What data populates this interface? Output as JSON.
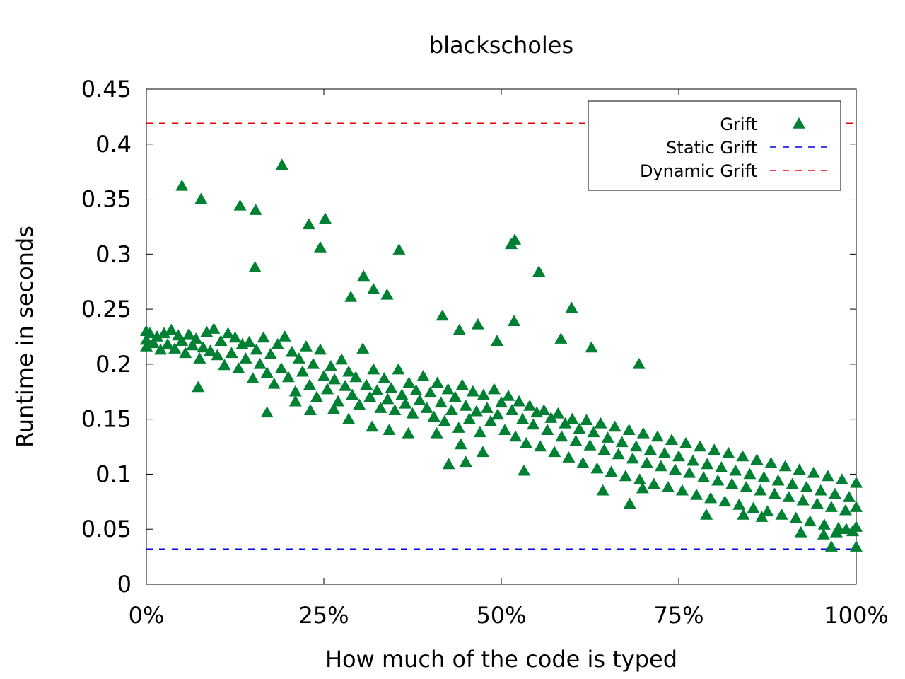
{
  "chart_data": {
    "type": "scatter",
    "title": "blackscholes",
    "xlabel": "How much of the code is typed",
    "ylabel": "Runtime in seconds",
    "xlim": [
      0,
      100
    ],
    "ylim": [
      0,
      0.45
    ],
    "xticks": [
      0,
      25,
      50,
      75,
      100
    ],
    "xtick_labels": [
      "0%",
      "25%",
      "50%",
      "75%",
      "100%"
    ],
    "yticks": [
      0,
      0.05,
      0.1,
      0.15,
      0.2,
      0.25,
      0.3,
      0.35,
      0.4,
      0.45
    ],
    "ytick_labels": [
      "0",
      "0.05",
      "0.1",
      "0.15",
      "0.2",
      "0.25",
      "0.3",
      "0.35",
      "0.4",
      "0.45"
    ],
    "legend_position": "top-right",
    "series": [
      {
        "name": "Grift",
        "kind": "scatter",
        "marker": "triangle",
        "color": "#008033",
        "points": [
          [
            0,
            0.23
          ],
          [
            0,
            0.222
          ],
          [
            0,
            0.216
          ],
          [
            0.5,
            0.228
          ],
          [
            1,
            0.219
          ],
          [
            1.5,
            0.225
          ],
          [
            2,
            0.213
          ],
          [
            2.5,
            0.228
          ],
          [
            3,
            0.218
          ],
          [
            3.5,
            0.231
          ],
          [
            4,
            0.214
          ],
          [
            4.5,
            0.226
          ],
          [
            5,
            0.221
          ],
          [
            5.5,
            0.21
          ],
          [
            6,
            0.227
          ],
          [
            6.5,
            0.217
          ],
          [
            7,
            0.223
          ],
          [
            7.5,
            0.205
          ],
          [
            8,
            0.215
          ],
          [
            8.5,
            0.229
          ],
          [
            9,
            0.212
          ],
          [
            9.5,
            0.232
          ],
          [
            10,
            0.208
          ],
          [
            10.5,
            0.221
          ],
          [
            11,
            0.199
          ],
          [
            11.5,
            0.228
          ],
          [
            12,
            0.21
          ],
          [
            12.5,
            0.224
          ],
          [
            13,
            0.196
          ],
          [
            13.5,
            0.218
          ],
          [
            14,
            0.205
          ],
          [
            14.5,
            0.22
          ],
          [
            15,
            0.187
          ],
          [
            15.5,
            0.213
          ],
          [
            16,
            0.2
          ],
          [
            16.5,
            0.224
          ],
          [
            17,
            0.192
          ],
          [
            17.5,
            0.209
          ],
          [
            18,
            0.182
          ],
          [
            18.5,
            0.218
          ],
          [
            19,
            0.196
          ],
          [
            19.5,
            0.225
          ],
          [
            20,
            0.188
          ],
          [
            20.5,
            0.211
          ],
          [
            21,
            0.175
          ],
          [
            21.5,
            0.205
          ],
          [
            22,
            0.193
          ],
          [
            22.5,
            0.216
          ],
          [
            23,
            0.181
          ],
          [
            23.5,
            0.2
          ],
          [
            24,
            0.17
          ],
          [
            24.5,
            0.213
          ],
          [
            25,
            0.189
          ],
          [
            25.5,
            0.177
          ],
          [
            26,
            0.198
          ],
          [
            26.5,
            0.186
          ],
          [
            27,
            0.166
          ],
          [
            27.5,
            0.204
          ],
          [
            28,
            0.18
          ],
          [
            28.5,
            0.193
          ],
          [
            29,
            0.172
          ],
          [
            29.5,
            0.188
          ],
          [
            30,
            0.163
          ],
          [
            30.5,
            0.214
          ],
          [
            31,
            0.181
          ],
          [
            31.5,
            0.17
          ],
          [
            32,
            0.195
          ],
          [
            32.5,
            0.176
          ],
          [
            33,
            0.16
          ],
          [
            33.5,
            0.187
          ],
          [
            34,
            0.168
          ],
          [
            34.5,
            0.178
          ],
          [
            35,
            0.158
          ],
          [
            35.5,
            0.195
          ],
          [
            36,
            0.172
          ],
          [
            36.5,
            0.164
          ],
          [
            37,
            0.183
          ],
          [
            37.5,
            0.155
          ],
          [
            38,
            0.176
          ],
          [
            38.5,
            0.167
          ],
          [
            39,
            0.189
          ],
          [
            39.5,
            0.16
          ],
          [
            40,
            0.174
          ],
          [
            40.5,
            0.152
          ],
          [
            41,
            0.183
          ],
          [
            41.5,
            0.165
          ],
          [
            42,
            0.148
          ],
          [
            42.5,
            0.177
          ],
          [
            43,
            0.158
          ],
          [
            43.5,
            0.17
          ],
          [
            44,
            0.142
          ],
          [
            44.5,
            0.181
          ],
          [
            45,
            0.162
          ],
          [
            45.5,
            0.15
          ],
          [
            46,
            0.175
          ],
          [
            46.5,
            0.157
          ],
          [
            47,
            0.138
          ],
          [
            47.5,
            0.172
          ],
          [
            48,
            0.16
          ],
          [
            48.5,
            0.148
          ],
          [
            49,
            0.177
          ],
          [
            49.5,
            0.154
          ],
          [
            50,
            0.165
          ],
          [
            50.5,
            0.14
          ],
          [
            51,
            0.171
          ],
          [
            51.5,
            0.158
          ],
          [
            52,
            0.134
          ],
          [
            52.5,
            0.166
          ],
          [
            53,
            0.15
          ],
          [
            53.5,
            0.128
          ],
          [
            54,
            0.162
          ],
          [
            54.5,
            0.145
          ],
          [
            55,
            0.156
          ],
          [
            55.5,
            0.125
          ],
          [
            56,
            0.158
          ],
          [
            56.5,
            0.14
          ],
          [
            57,
            0.151
          ],
          [
            57.5,
            0.12
          ],
          [
            58,
            0.155
          ],
          [
            58.5,
            0.134
          ],
          [
            59,
            0.146
          ],
          [
            59.5,
            0.115
          ],
          [
            60,
            0.15
          ],
          [
            60.5,
            0.13
          ],
          [
            61,
            0.141
          ],
          [
            61.5,
            0.11
          ],
          [
            62,
            0.149
          ],
          [
            62.5,
            0.126
          ],
          [
            63,
            0.138
          ],
          [
            63.5,
            0.105
          ],
          [
            64,
            0.146
          ],
          [
            64.5,
            0.122
          ],
          [
            65,
            0.133
          ],
          [
            65.5,
            0.102
          ],
          [
            66,
            0.143
          ],
          [
            66.5,
            0.118
          ],
          [
            67,
            0.129
          ],
          [
            67.5,
            0.098
          ],
          [
            68,
            0.14
          ],
          [
            68.5,
            0.114
          ],
          [
            69,
            0.125
          ],
          [
            69.5,
            0.095
          ],
          [
            70,
            0.137
          ],
          [
            70.5,
            0.11
          ],
          [
            71,
            0.122
          ],
          [
            71.5,
            0.091
          ],
          [
            72,
            0.134
          ],
          [
            72.5,
            0.107
          ],
          [
            73,
            0.119
          ],
          [
            73.5,
            0.088
          ],
          [
            74,
            0.131
          ],
          [
            74.5,
            0.104
          ],
          [
            75,
            0.116
          ],
          [
            75.5,
            0.085
          ],
          [
            76,
            0.128
          ],
          [
            76.5,
            0.101
          ],
          [
            77,
            0.112
          ],
          [
            77.5,
            0.081
          ],
          [
            78,
            0.125
          ],
          [
            78.5,
            0.097
          ],
          [
            79,
            0.109
          ],
          [
            79.5,
            0.078
          ],
          [
            80,
            0.122
          ],
          [
            80.5,
            0.094
          ],
          [
            81,
            0.106
          ],
          [
            81.5,
            0.075
          ],
          [
            82,
            0.119
          ],
          [
            82.5,
            0.091
          ],
          [
            83,
            0.103
          ],
          [
            83.5,
            0.072
          ],
          [
            84,
            0.116
          ],
          [
            84.5,
            0.088
          ],
          [
            85,
            0.1
          ],
          [
            85.5,
            0.069
          ],
          [
            86,
            0.113
          ],
          [
            86.5,
            0.085
          ],
          [
            87,
            0.097
          ],
          [
            87.5,
            0.066
          ],
          [
            88,
            0.11
          ],
          [
            88.5,
            0.082
          ],
          [
            89,
            0.094
          ],
          [
            89.5,
            0.063
          ],
          [
            90,
            0.107
          ],
          [
            90.5,
            0.079
          ],
          [
            91,
            0.091
          ],
          [
            91.5,
            0.06
          ],
          [
            92,
            0.104
          ],
          [
            92.5,
            0.076
          ],
          [
            93,
            0.088
          ],
          [
            93.5,
            0.057
          ],
          [
            94,
            0.101
          ],
          [
            94.5,
            0.073
          ],
          [
            95,
            0.085
          ],
          [
            95.5,
            0.054
          ],
          [
            96,
            0.098
          ],
          [
            96.5,
            0.07
          ],
          [
            97,
            0.082
          ],
          [
            97.5,
            0.051
          ],
          [
            98,
            0.095
          ],
          [
            98.5,
            0.067
          ],
          [
            99,
            0.079
          ],
          [
            99.5,
            0.048
          ],
          [
            100,
            0.092
          ],
          [
            100,
            0.07
          ],
          [
            100,
            0.052
          ],
          [
            100,
            0.034
          ],
          [
            5,
            0.362
          ],
          [
            7.7,
            0.35
          ],
          [
            13.2,
            0.344
          ],
          [
            15.4,
            0.34
          ],
          [
            15.3,
            0.288
          ],
          [
            19.1,
            0.381
          ],
          [
            22.9,
            0.327
          ],
          [
            24.5,
            0.306
          ],
          [
            25.2,
            0.332
          ],
          [
            28.8,
            0.261
          ],
          [
            30.6,
            0.28
          ],
          [
            32.0,
            0.268
          ],
          [
            33.9,
            0.263
          ],
          [
            35.6,
            0.304
          ],
          [
            41.7,
            0.244
          ],
          [
            44.1,
            0.231
          ],
          [
            46.7,
            0.236
          ],
          [
            49.4,
            0.221
          ],
          [
            51.4,
            0.309
          ],
          [
            51.9,
            0.313
          ],
          [
            51.8,
            0.239
          ],
          [
            55.3,
            0.284
          ],
          [
            58.4,
            0.223
          ],
          [
            59.9,
            0.251
          ],
          [
            62.7,
            0.215
          ],
          [
            69.4,
            0.2
          ],
          [
            42.6,
            0.109
          ],
          [
            45.0,
            0.111
          ],
          [
            47.4,
            0.12
          ],
          [
            53.2,
            0.103
          ],
          [
            64.3,
            0.085
          ],
          [
            68.1,
            0.073
          ],
          [
            69.9,
            0.087
          ],
          [
            78.9,
            0.063
          ],
          [
            84.1,
            0.063
          ],
          [
            86.7,
            0.061
          ],
          [
            92.2,
            0.047
          ],
          [
            95.4,
            0.045
          ],
          [
            96.5,
            0.034
          ],
          [
            97.2,
            0.047
          ],
          [
            98.6,
            0.05
          ],
          [
            7.3,
            0.179
          ],
          [
            17.0,
            0.156
          ],
          [
            21.0,
            0.166
          ],
          [
            23.1,
            0.158
          ],
          [
            26.4,
            0.159
          ],
          [
            28.5,
            0.15
          ],
          [
            31.8,
            0.143
          ],
          [
            34.2,
            0.14
          ],
          [
            36.9,
            0.137
          ],
          [
            40.9,
            0.137
          ],
          [
            44.3,
            0.127
          ]
        ]
      },
      {
        "name": "Static Grift",
        "kind": "hline",
        "value": 0.032,
        "color": "#0000ee",
        "dash": "dashed"
      },
      {
        "name": "Dynamic Grift",
        "kind": "hline",
        "value": 0.419,
        "color": "#ee0000",
        "dash": "dashed"
      }
    ]
  }
}
